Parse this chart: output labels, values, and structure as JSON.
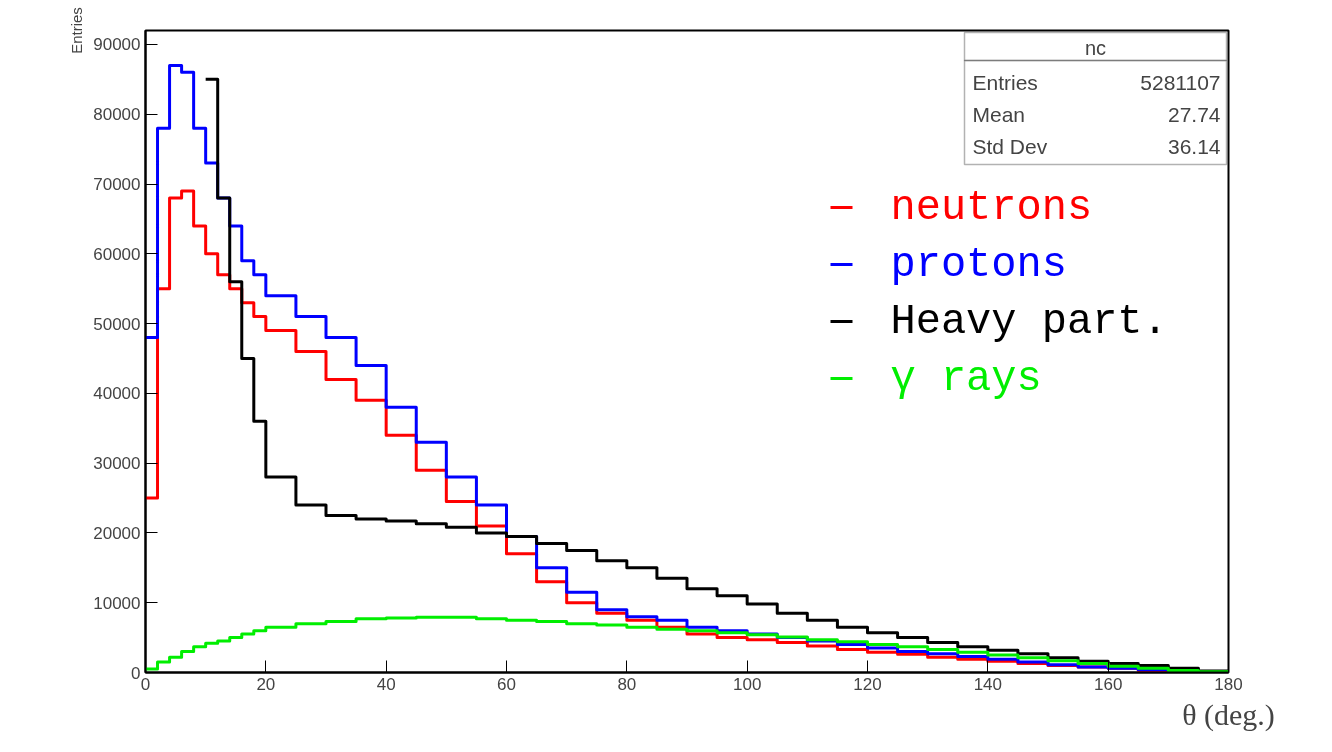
{
  "chart_data": {
    "type": "histogram",
    "xlabel": "θ (deg.)",
    "ylabel": "Entries",
    "bins": [
      0,
      2,
      4,
      6,
      8,
      10,
      12,
      14,
      16,
      18,
      20,
      25,
      30,
      35,
      40,
      45,
      50,
      55,
      60,
      65,
      70,
      75,
      80,
      85,
      90,
      95,
      100,
      105,
      110,
      115,
      120,
      125,
      130,
      135,
      140,
      145,
      150,
      155,
      160,
      165,
      170,
      175,
      180
    ],
    "series": [
      {
        "name": "neutrons",
        "color": "#ff0000",
        "values": [
          25000,
          55000,
          68000,
          69000,
          64000,
          60000,
          57000,
          55000,
          53000,
          51000,
          49000,
          46000,
          42000,
          39000,
          34000,
          29000,
          24500,
          21000,
          17000,
          13000,
          10000,
          8500,
          7500,
          6500,
          5500,
          5000,
          4700,
          4300,
          3800,
          3300,
          2900,
          2600,
          2200,
          1900,
          1600,
          1300,
          1000,
          800,
          600,
          300,
          200,
          100
        ]
      },
      {
        "name": "protons",
        "color": "#0000ff",
        "values": [
          48000,
          78000,
          87000,
          86000,
          78000,
          73000,
          68000,
          64000,
          59000,
          57000,
          54000,
          51000,
          48000,
          44000,
          38000,
          33000,
          28000,
          24000,
          19500,
          15000,
          11500,
          9000,
          8000,
          7500,
          6500,
          6000,
          5500,
          5000,
          4500,
          4000,
          3500,
          3000,
          2700,
          2300,
          1900,
          1500,
          1100,
          800,
          600,
          400,
          200,
          100
        ]
      },
      {
        "name": "Heavy part.",
        "color": "#000000",
        "bins": [
          10,
          12,
          14,
          16,
          18,
          20,
          25,
          30,
          35,
          40,
          45,
          50,
          55,
          60,
          65,
          70,
          75,
          80,
          85,
          90,
          95,
          100,
          105,
          110,
          115,
          120,
          125,
          130,
          135,
          140,
          145,
          150,
          155,
          160,
          165,
          170,
          175,
          180
        ],
        "values": [
          85000,
          68000,
          56000,
          45000,
          36000,
          28000,
          24000,
          22500,
          22000,
          21700,
          21300,
          20800,
          20000,
          19500,
          18500,
          17500,
          16000,
          15000,
          13500,
          12000,
          11000,
          9800,
          8500,
          7500,
          6500,
          5700,
          5000,
          4300,
          3700,
          3200,
          2700,
          2100,
          1600,
          1300,
          1000,
          600,
          200
        ]
      },
      {
        "name": "γ rays",
        "color": "#00ee00",
        "values": [
          500,
          1500,
          2200,
          3000,
          3700,
          4200,
          4500,
          5000,
          5500,
          6000,
          6500,
          7000,
          7300,
          7700,
          7800,
          7900,
          7900,
          7700,
          7500,
          7300,
          7000,
          6800,
          6500,
          6200,
          6000,
          5700,
          5400,
          5100,
          4700,
          4400,
          4000,
          3700,
          3300,
          2900,
          2500,
          2100,
          1700,
          1300,
          900,
          600,
          300,
          100
        ]
      }
    ],
    "xlim": [
      0,
      180
    ],
    "xticks": [
      0,
      20,
      40,
      60,
      80,
      100,
      120,
      140,
      160,
      180
    ],
    "ylim": [
      0,
      92000
    ],
    "yticks": [
      0,
      10000,
      20000,
      30000,
      40000,
      50000,
      60000,
      70000,
      80000,
      90000
    ],
    "grid": false,
    "legend": "top right",
    "annotations": [
      "nc",
      "Entries 5281107",
      "Mean 27.74",
      "Std Dev 36.14"
    ]
  }
}
